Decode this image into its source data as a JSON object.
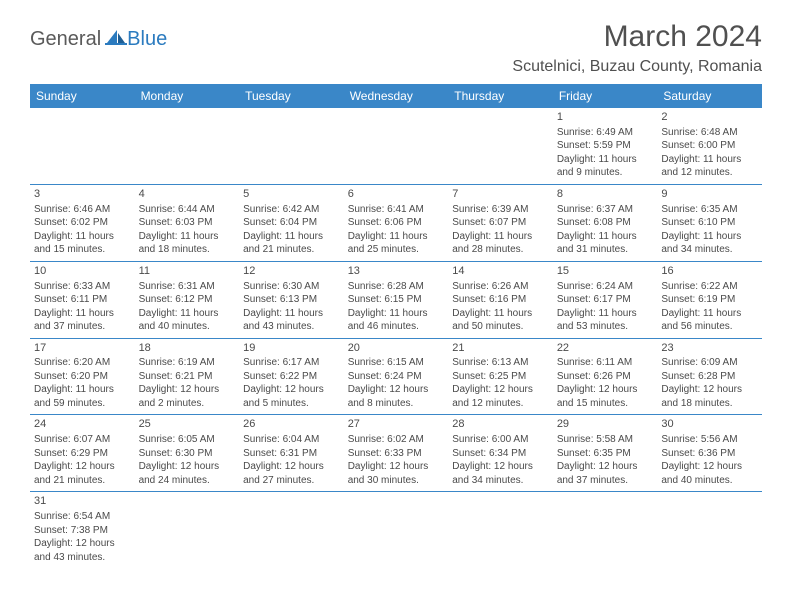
{
  "logo": {
    "text1": "General",
    "text2": "Blue"
  },
  "title": "March 2024",
  "subtitle": "Scutelnici, Buzau County, Romania",
  "colors": {
    "header_bg": "#3a87c8",
    "header_text": "#ffffff",
    "border": "#3a87c8",
    "text": "#4a4a4a",
    "logo_blue": "#2b7bbf"
  },
  "weekdays": [
    "Sunday",
    "Monday",
    "Tuesday",
    "Wednesday",
    "Thursday",
    "Friday",
    "Saturday"
  ],
  "weeks": [
    [
      null,
      null,
      null,
      null,
      null,
      {
        "n": "1",
        "sr": "Sunrise: 6:49 AM",
        "ss": "Sunset: 5:59 PM",
        "d1": "Daylight: 11 hours",
        "d2": "and 9 minutes."
      },
      {
        "n": "2",
        "sr": "Sunrise: 6:48 AM",
        "ss": "Sunset: 6:00 PM",
        "d1": "Daylight: 11 hours",
        "d2": "and 12 minutes."
      }
    ],
    [
      {
        "n": "3",
        "sr": "Sunrise: 6:46 AM",
        "ss": "Sunset: 6:02 PM",
        "d1": "Daylight: 11 hours",
        "d2": "and 15 minutes."
      },
      {
        "n": "4",
        "sr": "Sunrise: 6:44 AM",
        "ss": "Sunset: 6:03 PM",
        "d1": "Daylight: 11 hours",
        "d2": "and 18 minutes."
      },
      {
        "n": "5",
        "sr": "Sunrise: 6:42 AM",
        "ss": "Sunset: 6:04 PM",
        "d1": "Daylight: 11 hours",
        "d2": "and 21 minutes."
      },
      {
        "n": "6",
        "sr": "Sunrise: 6:41 AM",
        "ss": "Sunset: 6:06 PM",
        "d1": "Daylight: 11 hours",
        "d2": "and 25 minutes."
      },
      {
        "n": "7",
        "sr": "Sunrise: 6:39 AM",
        "ss": "Sunset: 6:07 PM",
        "d1": "Daylight: 11 hours",
        "d2": "and 28 minutes."
      },
      {
        "n": "8",
        "sr": "Sunrise: 6:37 AM",
        "ss": "Sunset: 6:08 PM",
        "d1": "Daylight: 11 hours",
        "d2": "and 31 minutes."
      },
      {
        "n": "9",
        "sr": "Sunrise: 6:35 AM",
        "ss": "Sunset: 6:10 PM",
        "d1": "Daylight: 11 hours",
        "d2": "and 34 minutes."
      }
    ],
    [
      {
        "n": "10",
        "sr": "Sunrise: 6:33 AM",
        "ss": "Sunset: 6:11 PM",
        "d1": "Daylight: 11 hours",
        "d2": "and 37 minutes."
      },
      {
        "n": "11",
        "sr": "Sunrise: 6:31 AM",
        "ss": "Sunset: 6:12 PM",
        "d1": "Daylight: 11 hours",
        "d2": "and 40 minutes."
      },
      {
        "n": "12",
        "sr": "Sunrise: 6:30 AM",
        "ss": "Sunset: 6:13 PM",
        "d1": "Daylight: 11 hours",
        "d2": "and 43 minutes."
      },
      {
        "n": "13",
        "sr": "Sunrise: 6:28 AM",
        "ss": "Sunset: 6:15 PM",
        "d1": "Daylight: 11 hours",
        "d2": "and 46 minutes."
      },
      {
        "n": "14",
        "sr": "Sunrise: 6:26 AM",
        "ss": "Sunset: 6:16 PM",
        "d1": "Daylight: 11 hours",
        "d2": "and 50 minutes."
      },
      {
        "n": "15",
        "sr": "Sunrise: 6:24 AM",
        "ss": "Sunset: 6:17 PM",
        "d1": "Daylight: 11 hours",
        "d2": "and 53 minutes."
      },
      {
        "n": "16",
        "sr": "Sunrise: 6:22 AM",
        "ss": "Sunset: 6:19 PM",
        "d1": "Daylight: 11 hours",
        "d2": "and 56 minutes."
      }
    ],
    [
      {
        "n": "17",
        "sr": "Sunrise: 6:20 AM",
        "ss": "Sunset: 6:20 PM",
        "d1": "Daylight: 11 hours",
        "d2": "and 59 minutes."
      },
      {
        "n": "18",
        "sr": "Sunrise: 6:19 AM",
        "ss": "Sunset: 6:21 PM",
        "d1": "Daylight: 12 hours",
        "d2": "and 2 minutes."
      },
      {
        "n": "19",
        "sr": "Sunrise: 6:17 AM",
        "ss": "Sunset: 6:22 PM",
        "d1": "Daylight: 12 hours",
        "d2": "and 5 minutes."
      },
      {
        "n": "20",
        "sr": "Sunrise: 6:15 AM",
        "ss": "Sunset: 6:24 PM",
        "d1": "Daylight: 12 hours",
        "d2": "and 8 minutes."
      },
      {
        "n": "21",
        "sr": "Sunrise: 6:13 AM",
        "ss": "Sunset: 6:25 PM",
        "d1": "Daylight: 12 hours",
        "d2": "and 12 minutes."
      },
      {
        "n": "22",
        "sr": "Sunrise: 6:11 AM",
        "ss": "Sunset: 6:26 PM",
        "d1": "Daylight: 12 hours",
        "d2": "and 15 minutes."
      },
      {
        "n": "23",
        "sr": "Sunrise: 6:09 AM",
        "ss": "Sunset: 6:28 PM",
        "d1": "Daylight: 12 hours",
        "d2": "and 18 minutes."
      }
    ],
    [
      {
        "n": "24",
        "sr": "Sunrise: 6:07 AM",
        "ss": "Sunset: 6:29 PM",
        "d1": "Daylight: 12 hours",
        "d2": "and 21 minutes."
      },
      {
        "n": "25",
        "sr": "Sunrise: 6:05 AM",
        "ss": "Sunset: 6:30 PM",
        "d1": "Daylight: 12 hours",
        "d2": "and 24 minutes."
      },
      {
        "n": "26",
        "sr": "Sunrise: 6:04 AM",
        "ss": "Sunset: 6:31 PM",
        "d1": "Daylight: 12 hours",
        "d2": "and 27 minutes."
      },
      {
        "n": "27",
        "sr": "Sunrise: 6:02 AM",
        "ss": "Sunset: 6:33 PM",
        "d1": "Daylight: 12 hours",
        "d2": "and 30 minutes."
      },
      {
        "n": "28",
        "sr": "Sunrise: 6:00 AM",
        "ss": "Sunset: 6:34 PM",
        "d1": "Daylight: 12 hours",
        "d2": "and 34 minutes."
      },
      {
        "n": "29",
        "sr": "Sunrise: 5:58 AM",
        "ss": "Sunset: 6:35 PM",
        "d1": "Daylight: 12 hours",
        "d2": "and 37 minutes."
      },
      {
        "n": "30",
        "sr": "Sunrise: 5:56 AM",
        "ss": "Sunset: 6:36 PM",
        "d1": "Daylight: 12 hours",
        "d2": "and 40 minutes."
      }
    ],
    [
      {
        "n": "31",
        "sr": "Sunrise: 6:54 AM",
        "ss": "Sunset: 7:38 PM",
        "d1": "Daylight: 12 hours",
        "d2": "and 43 minutes."
      },
      null,
      null,
      null,
      null,
      null,
      null
    ]
  ]
}
